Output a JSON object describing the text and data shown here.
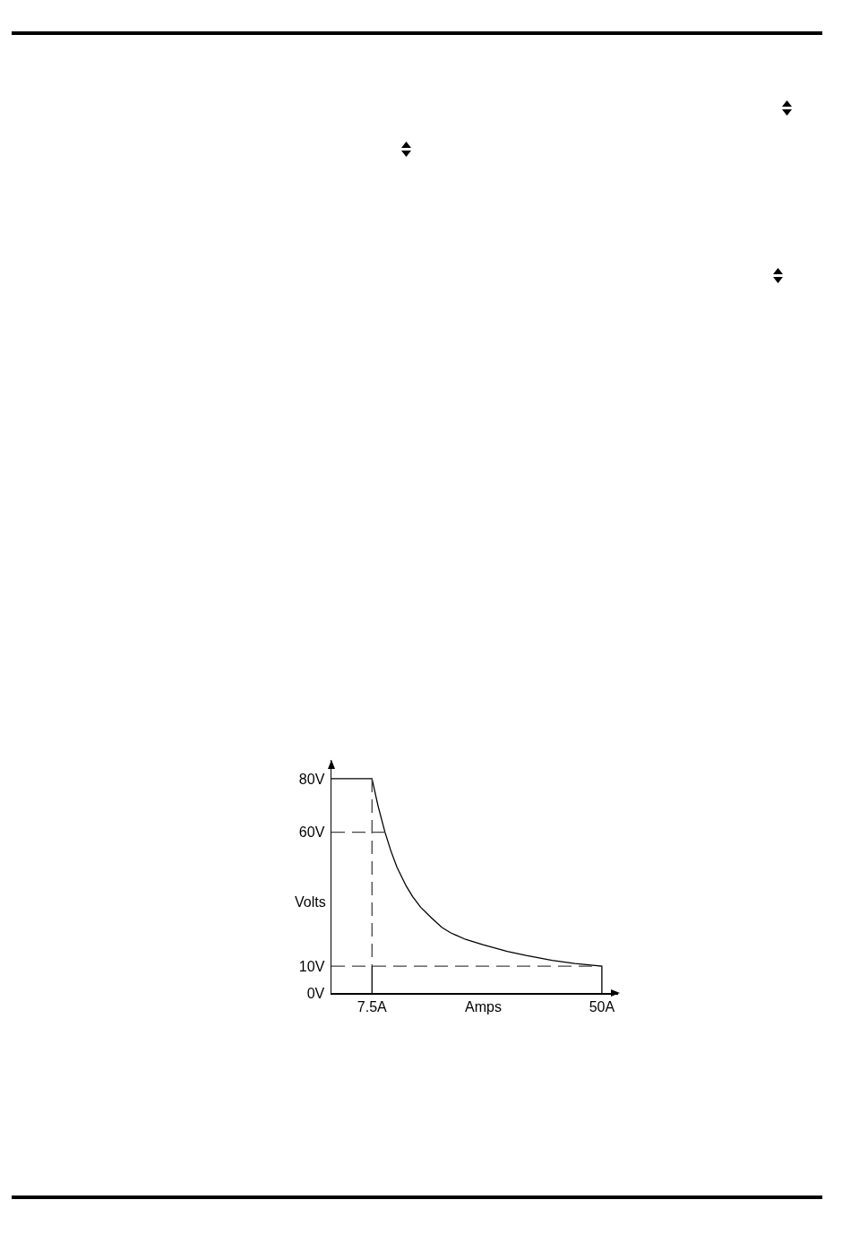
{
  "chart_data": {
    "type": "line",
    "xlabel": "Amps",
    "ylabel": "Volts",
    "xlim": [
      0,
      53
    ],
    "ylim": [
      0,
      87
    ],
    "xticks": [
      {
        "value": 7.5,
        "label": "7.5A"
      },
      {
        "value": 50,
        "label": "50A"
      }
    ],
    "yticks": [
      {
        "value": 0,
        "label": "0V"
      },
      {
        "value": 10,
        "label": "10V"
      },
      {
        "value": 60,
        "label": "60V"
      },
      {
        "value": 80,
        "label": "80V"
      }
    ],
    "grid": false,
    "marker": "none",
    "series": [
      {
        "color": "#000000",
        "line_style": "solid",
        "x": [
          0,
          7.5,
          8.6,
          9.9,
          11,
          12.1,
          13.8,
          15,
          16.5,
          18.5,
          20.4,
          22,
          24.8,
          28,
          32.5,
          36,
          40.8,
          45,
          50,
          50
        ],
        "values": [
          80,
          80,
          70,
          60,
          53,
          47,
          40,
          36,
          32,
          28,
          24.5,
          22.5,
          20,
          18,
          15.5,
          14,
          12.2,
          11,
          10,
          0
        ]
      },
      {
        "color": "#444444",
        "line_style": "dashed",
        "x": [
          0,
          9.9
        ],
        "values": [
          60,
          60
        ]
      },
      {
        "color": "#444444",
        "line_style": "dashed",
        "x": [
          0,
          50
        ],
        "values": [
          10,
          10
        ]
      },
      {
        "color": "#444444",
        "line_style": "dashed",
        "x": [
          7.5,
          7.5
        ],
        "values": [
          80,
          10
        ]
      },
      {
        "color": "#000000",
        "line_style": "solid",
        "x": [
          7.5,
          7.5
        ],
        "values": [
          10,
          0
        ]
      }
    ]
  }
}
